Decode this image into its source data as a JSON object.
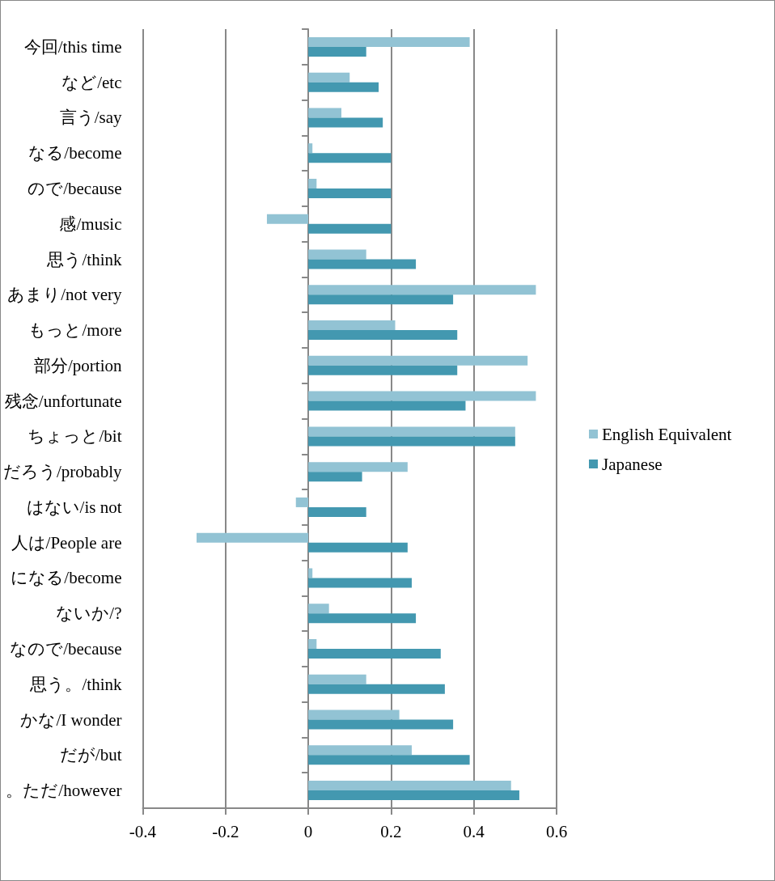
{
  "chart_data": {
    "type": "bar",
    "orientation": "horizontal",
    "categories": [
      "今回/this time",
      "など/etc",
      "言う/say",
      "なる/become",
      "ので/because",
      "感/music",
      "思う/think",
      "あまり/not very",
      "もっと/more",
      "部分/portion",
      "残念/unfortunate",
      "ちょっと/bit",
      "だろう/probably",
      "はない/is not",
      "人は/People are",
      "になる/become",
      "ないか/?",
      "なので/because",
      "思う。/think",
      "かな/I wonder",
      "だが/but",
      "。ただ/however"
    ],
    "series": [
      {
        "name": "English Equivalent",
        "color": "#92c3d4",
        "values": [
          0.39,
          0.1,
          0.08,
          0.01,
          0.02,
          -0.1,
          0.14,
          0.55,
          0.21,
          0.53,
          0.55,
          0.5,
          0.24,
          -0.03,
          -0.27,
          0.01,
          0.05,
          0.02,
          0.14,
          0.22,
          0.25,
          0.49
        ]
      },
      {
        "name": "Japanese",
        "color": "#4398b0",
        "values": [
          0.14,
          0.17,
          0.18,
          0.2,
          0.2,
          0.2,
          0.26,
          0.35,
          0.36,
          0.36,
          0.38,
          0.5,
          0.13,
          0.14,
          0.24,
          0.25,
          0.26,
          0.32,
          0.33,
          0.35,
          0.39,
          0.51
        ]
      }
    ],
    "xlim": [
      -0.4,
      0.6
    ],
    "xticks": [
      -0.4,
      -0.2,
      0,
      0.2,
      0.4,
      0.6
    ],
    "grid": "x",
    "legend": "right"
  }
}
